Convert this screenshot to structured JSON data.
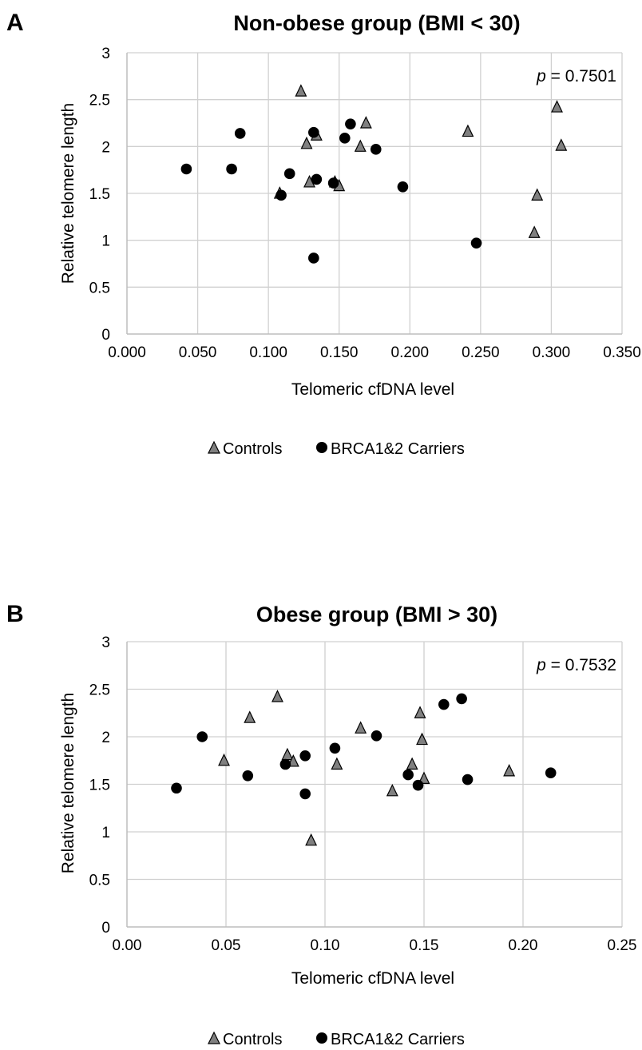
{
  "chart_data": [
    {
      "type": "scatter",
      "panel": "A",
      "title": "Non-obese group (BMI < 30)",
      "xlabel": "Telomeric cfDNA level",
      "ylabel": "Relative telomere length",
      "xlim": [
        0,
        0.35
      ],
      "ylim": [
        0,
        3
      ],
      "x_ticks": [
        "0.000",
        "0.050",
        "0.100",
        "0.150",
        "0.200",
        "0.250",
        "0.300",
        "0.350"
      ],
      "y_ticks": [
        "0",
        "0.5",
        "1",
        "1.5",
        "2",
        "2.5",
        "3"
      ],
      "grid": true,
      "annotation": {
        "p_symbol": "p",
        "p_text": " = 0.7501"
      },
      "legend_placement": "bottom",
      "series": [
        {
          "name": "Controls",
          "marker": "triangle",
          "color": "#808080",
          "points": [
            {
              "x": 0.123,
              "y": 2.59
            },
            {
              "x": 0.127,
              "y": 2.03
            },
            {
              "x": 0.129,
              "y": 1.62
            },
            {
              "x": 0.134,
              "y": 2.12
            },
            {
              "x": 0.147,
              "y": 1.62
            },
            {
              "x": 0.15,
              "y": 1.58
            },
            {
              "x": 0.165,
              "y": 2.0
            },
            {
              "x": 0.169,
              "y": 2.25
            },
            {
              "x": 0.241,
              "y": 2.16
            },
            {
              "x": 0.288,
              "y": 1.08
            },
            {
              "x": 0.29,
              "y": 1.48
            },
            {
              "x": 0.304,
              "y": 2.42
            },
            {
              "x": 0.307,
              "y": 2.01
            },
            {
              "x": 0.108,
              "y": 1.5
            }
          ]
        },
        {
          "name": "BRCA1&2 Carriers",
          "marker": "circle",
          "color": "#000000",
          "points": [
            {
              "x": 0.042,
              "y": 1.76
            },
            {
              "x": 0.074,
              "y": 1.76
            },
            {
              "x": 0.08,
              "y": 2.14
            },
            {
              "x": 0.109,
              "y": 1.48
            },
            {
              "x": 0.115,
              "y": 1.71
            },
            {
              "x": 0.132,
              "y": 2.15
            },
            {
              "x": 0.132,
              "y": 0.81
            },
            {
              "x": 0.134,
              "y": 1.65
            },
            {
              "x": 0.146,
              "y": 1.61
            },
            {
              "x": 0.154,
              "y": 2.09
            },
            {
              "x": 0.158,
              "y": 2.24
            },
            {
              "x": 0.176,
              "y": 1.97
            },
            {
              "x": 0.195,
              "y": 1.57
            },
            {
              "x": 0.247,
              "y": 0.97
            }
          ]
        }
      ]
    },
    {
      "type": "scatter",
      "panel": "B",
      "title": "Obese group (BMI > 30)",
      "xlabel": "Telomeric cfDNA level",
      "ylabel": "Relative telomere length",
      "xlim": [
        0,
        0.25
      ],
      "ylim": [
        0,
        3
      ],
      "x_ticks": [
        "0.00",
        "0.05",
        "0.10",
        "0.15",
        "0.20",
        "0.25"
      ],
      "y_ticks": [
        "0",
        "0.5",
        "1",
        "1.5",
        "2",
        "2.5",
        "3"
      ],
      "grid": true,
      "annotation": {
        "p_symbol": "p",
        "p_text": " = 0.7532"
      },
      "legend_placement": "bottom",
      "series": [
        {
          "name": "Controls",
          "marker": "triangle",
          "color": "#808080",
          "points": [
            {
              "x": 0.049,
              "y": 1.75
            },
            {
              "x": 0.062,
              "y": 2.2
            },
            {
              "x": 0.076,
              "y": 2.42
            },
            {
              "x": 0.081,
              "y": 1.81
            },
            {
              "x": 0.084,
              "y": 1.74
            },
            {
              "x": 0.093,
              "y": 0.91
            },
            {
              "x": 0.106,
              "y": 1.71
            },
            {
              "x": 0.118,
              "y": 2.09
            },
            {
              "x": 0.134,
              "y": 1.43
            },
            {
              "x": 0.144,
              "y": 1.71
            },
            {
              "x": 0.148,
              "y": 2.25
            },
            {
              "x": 0.149,
              "y": 1.97
            },
            {
              "x": 0.15,
              "y": 1.56
            },
            {
              "x": 0.193,
              "y": 1.64
            }
          ]
        },
        {
          "name": "BRCA1&2 Carriers",
          "marker": "circle",
          "color": "#000000",
          "points": [
            {
              "x": 0.025,
              "y": 1.46
            },
            {
              "x": 0.038,
              "y": 2.0
            },
            {
              "x": 0.061,
              "y": 1.59
            },
            {
              "x": 0.08,
              "y": 1.71
            },
            {
              "x": 0.09,
              "y": 1.8
            },
            {
              "x": 0.09,
              "y": 1.4
            },
            {
              "x": 0.105,
              "y": 1.88
            },
            {
              "x": 0.126,
              "y": 2.01
            },
            {
              "x": 0.142,
              "y": 1.6
            },
            {
              "x": 0.147,
              "y": 1.49
            },
            {
              "x": 0.16,
              "y": 2.34
            },
            {
              "x": 0.169,
              "y": 2.4
            },
            {
              "x": 0.172,
              "y": 1.55
            },
            {
              "x": 0.214,
              "y": 1.62
            }
          ]
        }
      ]
    }
  ]
}
